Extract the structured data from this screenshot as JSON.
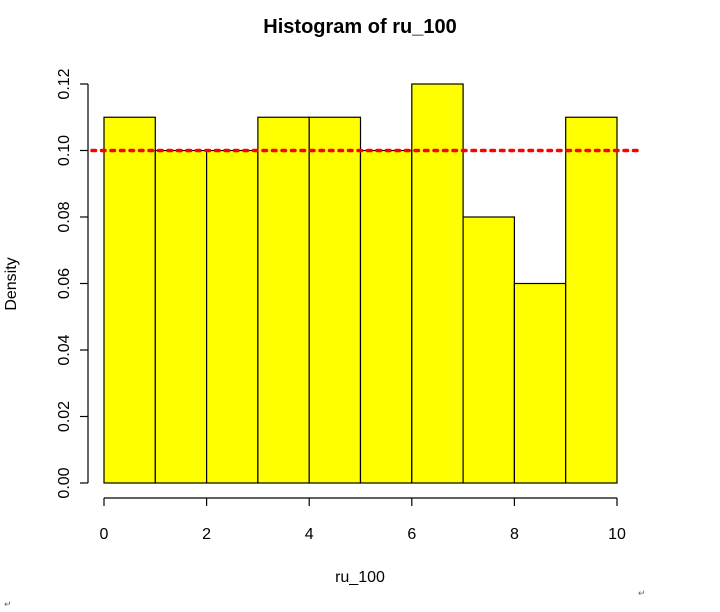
{
  "chart_data": {
    "type": "bar",
    "title": "Histogram of ru_100",
    "xlabel": "ru_100",
    "ylabel": "Density",
    "bin_edges": [
      0,
      1,
      2,
      3,
      4,
      5,
      6,
      7,
      8,
      9,
      10
    ],
    "values": [
      0.11,
      0.1,
      0.1,
      0.11,
      0.11,
      0.1,
      0.12,
      0.08,
      0.06,
      0.11
    ],
    "xlim": [
      0,
      10
    ],
    "ylim": [
      0,
      0.12
    ],
    "x_ticks": [
      0,
      2,
      4,
      6,
      8,
      10
    ],
    "x_tick_labels": [
      "0",
      "2",
      "4",
      "6",
      "8",
      "10"
    ],
    "y_ticks": [
      0,
      0.02,
      0.04,
      0.06,
      0.08,
      0.1,
      0.12
    ],
    "y_tick_labels": [
      "0.00",
      "0.02",
      "0.04",
      "0.06",
      "0.08",
      "0.10",
      "0.12"
    ],
    "bar_color": "#ffff00",
    "reference_line": {
      "y": 0.1,
      "color": "#ff0000",
      "style": "dotted"
    },
    "grid": false,
    "legend": "none"
  },
  "page_marks": {
    "return_symbol": "↵"
  }
}
